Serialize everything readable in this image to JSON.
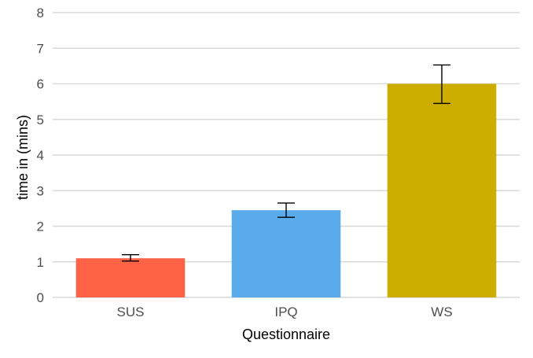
{
  "chart_data": {
    "type": "bar",
    "title": "",
    "xlabel": "Questionnaire",
    "ylabel": "time in (mins)",
    "categories": [
      "SUS",
      "IPQ",
      "WS"
    ],
    "values": [
      1.1,
      2.45,
      6.0
    ],
    "error_low": [
      1.02,
      2.25,
      5.45
    ],
    "error_high": [
      1.2,
      2.65,
      6.53
    ],
    "colors": [
      "#ff6347",
      "#5aabec",
      "#ccad00"
    ],
    "ylim": [
      0,
      8
    ],
    "yticks": [
      "0",
      "1",
      "2",
      "3",
      "4",
      "5",
      "6",
      "7",
      "8"
    ],
    "grid": true,
    "legend": "none"
  }
}
